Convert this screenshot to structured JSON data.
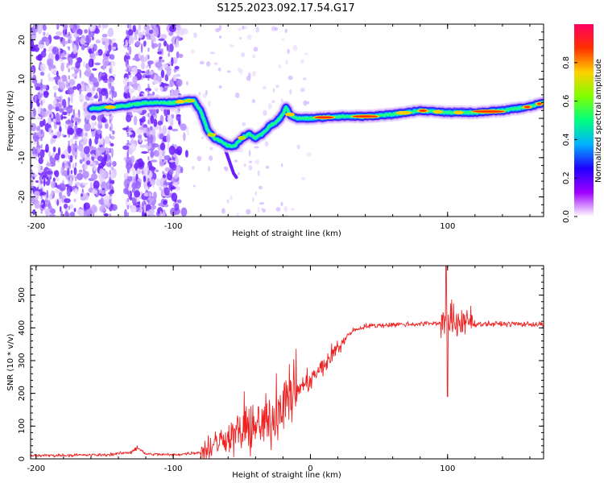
{
  "title": "S125.2023.092.17.54.G17",
  "chart_data": [
    {
      "type": "heatmap",
      "xlabel": "Height of straight line (km)",
      "ylabel": "Frequency (Hz)",
      "xlim": [
        -204,
        170
      ],
      "ylim": [
        -25,
        24
      ],
      "x_ticks": [
        -200,
        -100,
        100
      ],
      "y_ticks": [
        -20,
        -10,
        0,
        10,
        20
      ],
      "colorbar": {
        "label": "Normalized spectral amplitude",
        "range": [
          0,
          1
        ],
        "ticks": [
          0.0,
          0.2,
          0.4,
          0.6,
          0.8
        ],
        "colors": [
          "#ffffff",
          "#a000ff",
          "#2000ff",
          "#00b0ff",
          "#00ff80",
          "#80ff00",
          "#ffd000",
          "#ff3000",
          "#ff0060"
        ]
      },
      "ridge": {
        "x": [
          -160,
          -140,
          -120,
          -100,
          -90,
          -85,
          -80,
          -75,
          -70,
          -65,
          -60,
          -55,
          -50,
          -45,
          -40,
          -35,
          -30,
          -25,
          -20,
          -18,
          -15,
          -10,
          0,
          20,
          40,
          60,
          80,
          100,
          120,
          140,
          160,
          170
        ],
        "y": [
          2.5,
          3.0,
          4.0,
          4.0,
          4.5,
          4.5,
          2,
          -3,
          -5,
          -6,
          -7,
          -7,
          -5,
          -4,
          -5,
          -4,
          -2,
          -1,
          1,
          3,
          1,
          0,
          0,
          0.5,
          0.5,
          1,
          2,
          1.5,
          1.5,
          2,
          3,
          4
        ]
      }
    },
    {
      "type": "line",
      "xlabel": "Height of straight line (km)",
      "ylabel": "SNR (10 * v/v)",
      "xlim": [
        -204,
        170
      ],
      "ylim": [
        0,
        590
      ],
      "x_ticks": [
        -200,
        -100,
        0,
        100
      ],
      "y_ticks": [
        0,
        100,
        200,
        300,
        400,
        500
      ],
      "color": "#ee2222",
      "trend": {
        "x": [
          -204,
          -150,
          -130,
          -125,
          -120,
          -100,
          -80,
          -70,
          -60,
          -50,
          -40,
          -30,
          -20,
          -10,
          0,
          10,
          20,
          30,
          40,
          60,
          80,
          95,
          100,
          105,
          115,
          130,
          150,
          170
        ],
        "y": [
          10,
          12,
          20,
          30,
          15,
          12,
          20,
          45,
          70,
          80,
          95,
          115,
          170,
          210,
          240,
          285,
          340,
          390,
          405,
          410,
          412,
          415,
          420,
          415,
          412,
          412,
          412,
          410
        ]
      }
    }
  ]
}
